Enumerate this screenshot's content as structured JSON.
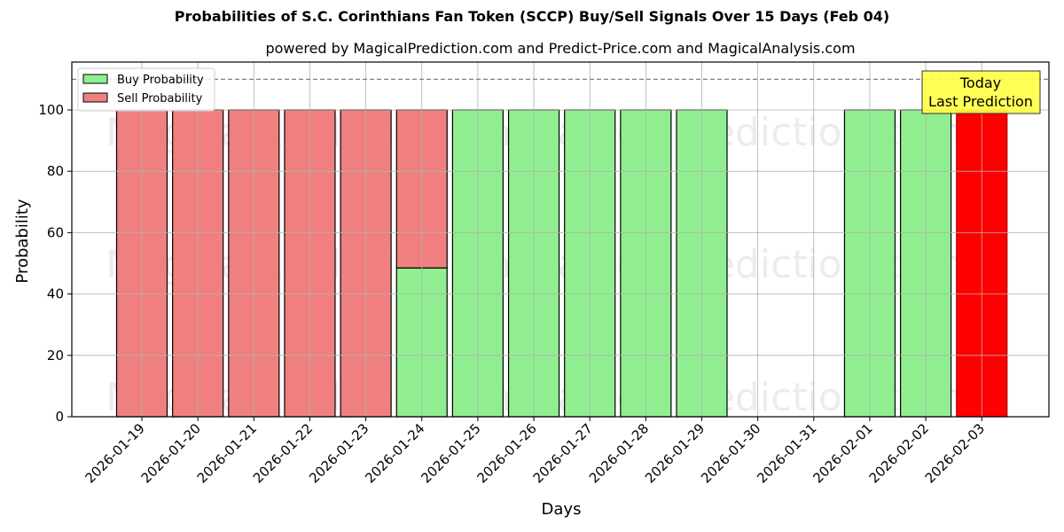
{
  "chart_data": {
    "type": "bar",
    "stacked": true,
    "title": "Probabilities of S.C. Corinthians Fan Token (SCCP) Buy/Sell Signals Over 15 Days (Feb 04)",
    "subtitle": "powered by MagicalPrediction.com and Predict-Price.com and MagicalAnalysis.com",
    "xlabel": "Days",
    "ylabel": "Probability",
    "ylim": [
      0,
      115.6
    ],
    "yticks": [
      0,
      20,
      40,
      60,
      80,
      100
    ],
    "grid": true,
    "legend_position": "upper left",
    "reference_line": {
      "y": 110,
      "style": "dashed",
      "color": "#808080"
    },
    "categories": [
      "2026-01-19",
      "2026-01-20",
      "2026-01-21",
      "2026-01-22",
      "2026-01-23",
      "2026-01-24",
      "2026-01-25",
      "2026-01-26",
      "2026-01-27",
      "2026-01-28",
      "2026-01-29",
      "2026-01-30",
      "2026-01-31",
      "2026-02-01",
      "2026-02-02",
      "2026-02-03"
    ],
    "series": [
      {
        "name": "Buy Probability",
        "color": "#90ee90",
        "values": [
          0,
          0,
          0,
          0,
          0,
          48.5,
          100,
          100,
          100,
          100,
          100,
          0,
          0,
          100,
          100,
          0
        ]
      },
      {
        "name": "Sell Probability",
        "color": "#f08080",
        "values": [
          100,
          100,
          100,
          100,
          100,
          51.5,
          0,
          0,
          0,
          0,
          0,
          0,
          0,
          0,
          0,
          100
        ]
      }
    ],
    "highlight": {
      "category": "2026-02-03",
      "color": "#ff0000",
      "series": "Sell Probability"
    },
    "annotation": {
      "text_line1": "Today",
      "text_line2": "Last Prediction",
      "background": "#ffff44"
    },
    "watermarks": [
      "MagicalAnalysis.com",
      "MagicalPrediction.com"
    ]
  }
}
